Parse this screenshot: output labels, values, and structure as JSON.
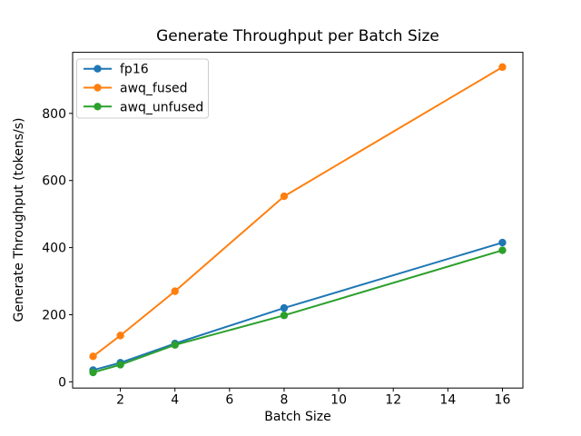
{
  "chart_data": {
    "type": "line",
    "title": "Generate Throughput per Batch Size",
    "xlabel": "Batch Size",
    "ylabel": "Generate Throughput (tokens/s)",
    "x": [
      1,
      2,
      4,
      8,
      16
    ],
    "series": [
      {
        "name": "fp16",
        "color": "#1f77b4",
        "values": [
          35,
          57,
          114,
          220,
          415
        ]
      },
      {
        "name": "awq_fused",
        "color": "#ff7f0e",
        "values": [
          76,
          138,
          270,
          553,
          938
        ]
      },
      {
        "name": "awq_unfused",
        "color": "#2ca02c",
        "values": [
          28,
          51,
          110,
          198,
          392
        ]
      }
    ],
    "xticks": [
      2,
      4,
      6,
      8,
      10,
      12,
      14,
      16
    ],
    "yticks": [
      0,
      200,
      400,
      600,
      800
    ],
    "xlim": [
      0.25,
      16.75
    ],
    "ylim": [
      -18.5,
      982
    ],
    "grid": false,
    "marker": "circle",
    "legend": {
      "position": "upper left",
      "frame": true,
      "entries": [
        "fp16",
        "awq_fused",
        "awq_unfused"
      ]
    },
    "axis_color": "#000000",
    "legend_border_color": "#cccccc",
    "background_color": "#ffffff"
  }
}
